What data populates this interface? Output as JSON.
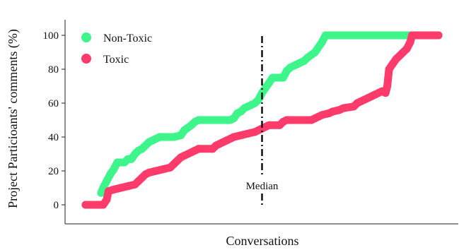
{
  "chart_data": {
    "type": "line",
    "title": "",
    "xlabel": "Conversations",
    "ylabel": "Project Particioants' comments (%)",
    "x_range": [
      0,
      100
    ],
    "ylim": [
      -10,
      107
    ],
    "yticks": [
      0,
      20,
      40,
      60,
      80,
      100
    ],
    "grid": false,
    "legend": {
      "placement": "top-left"
    },
    "annotations": [
      {
        "label": "Median",
        "x": 50,
        "style": "dash-dot vertical line"
      }
    ],
    "series": [
      {
        "name": "Non-Toxic",
        "color": "#3df58b",
        "points": [
          [
            4.4,
            7
          ],
          [
            5,
            10
          ],
          [
            6,
            14
          ],
          [
            7,
            18
          ],
          [
            8,
            21
          ],
          [
            9,
            25
          ],
          [
            10,
            25
          ],
          [
            11,
            25
          ],
          [
            12,
            27
          ],
          [
            13,
            27
          ],
          [
            14,
            30
          ],
          [
            15,
            32
          ],
          [
            16,
            33
          ],
          [
            17,
            35
          ],
          [
            18,
            37
          ],
          [
            19,
            38
          ],
          [
            20,
            39
          ],
          [
            21,
            40
          ],
          [
            25,
            40
          ],
          [
            27,
            41
          ],
          [
            28,
            44
          ],
          [
            30,
            47
          ],
          [
            31,
            49
          ],
          [
            32,
            50
          ],
          [
            41,
            50
          ],
          [
            42,
            51
          ],
          [
            43,
            54
          ],
          [
            44,
            55
          ],
          [
            45,
            57
          ],
          [
            46,
            58
          ],
          [
            47,
            59
          ],
          [
            48,
            60
          ],
          [
            49,
            62
          ],
          [
            50,
            66
          ],
          [
            51,
            69
          ],
          [
            52,
            72
          ],
          [
            53,
            75
          ],
          [
            56,
            75
          ],
          [
            57,
            79
          ],
          [
            58,
            81
          ],
          [
            60,
            83
          ],
          [
            62,
            85
          ],
          [
            63,
            87
          ],
          [
            65,
            90
          ],
          [
            66,
            93
          ],
          [
            67,
            96
          ],
          [
            68,
            100
          ],
          [
            100,
            100
          ]
        ]
      },
      {
        "name": "Toxic",
        "color": "#ff3b6b",
        "points": [
          [
            0,
            0
          ],
          [
            5,
            0
          ],
          [
            6,
            3
          ],
          [
            6.5,
            8
          ],
          [
            8,
            9
          ],
          [
            10,
            10
          ],
          [
            12,
            11
          ],
          [
            14,
            12
          ],
          [
            15,
            14
          ],
          [
            16,
            16
          ],
          [
            17,
            18
          ],
          [
            18,
            19
          ],
          [
            20,
            20
          ],
          [
            22,
            21
          ],
          [
            24,
            22
          ],
          [
            25,
            24
          ],
          [
            26,
            26
          ],
          [
            27,
            28
          ],
          [
            28,
            29
          ],
          [
            30,
            31
          ],
          [
            31,
            32
          ],
          [
            32,
            33
          ],
          [
            36,
            33
          ],
          [
            37,
            35
          ],
          [
            38,
            36
          ],
          [
            39,
            37
          ],
          [
            40,
            38
          ],
          [
            41,
            39
          ],
          [
            42,
            40
          ],
          [
            44,
            41
          ],
          [
            46,
            42
          ],
          [
            48,
            43
          ],
          [
            50,
            45
          ],
          [
            51,
            46
          ],
          [
            52,
            47
          ],
          [
            55,
            47
          ],
          [
            56,
            49
          ],
          [
            57,
            50
          ],
          [
            60,
            50
          ],
          [
            64,
            50
          ],
          [
            65,
            51
          ],
          [
            66,
            52
          ],
          [
            67,
            53
          ],
          [
            69,
            54
          ],
          [
            70,
            55
          ],
          [
            72,
            56
          ],
          [
            73,
            57
          ],
          [
            76,
            58
          ],
          [
            77,
            60
          ],
          [
            78,
            61
          ],
          [
            79,
            62
          ],
          [
            80,
            63
          ],
          [
            81,
            64
          ],
          [
            82,
            65
          ],
          [
            83,
            66
          ],
          [
            84,
            67
          ],
          [
            85,
            66
          ],
          [
            85.5,
            70
          ],
          [
            86,
            80
          ],
          [
            87,
            83
          ],
          [
            88,
            86
          ],
          [
            89,
            88
          ],
          [
            90,
            90
          ],
          [
            91,
            92
          ],
          [
            92,
            96
          ],
          [
            92.5,
            100
          ],
          [
            100,
            100
          ]
        ]
      }
    ]
  }
}
